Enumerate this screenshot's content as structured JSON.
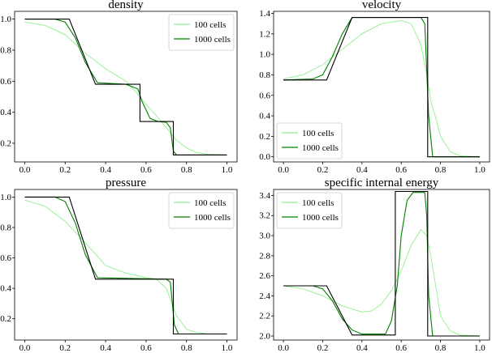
{
  "chart_data": [
    {
      "type": "line",
      "title": "density",
      "xlim": [
        -0.05,
        1.05
      ],
      "ylim": [
        0.08,
        1.05
      ],
      "xticks": [
        "0.0",
        "0.2",
        "0.4",
        "0.6",
        "0.8",
        "1.0"
      ],
      "yticks": [
        "0.2",
        "0.4",
        "0.6",
        "0.8",
        "1.0"
      ],
      "legend_position": "top-right",
      "series": [
        {
          "name": "100 cells",
          "color": "#90ee90",
          "x": [
            0,
            0.1,
            0.2,
            0.3,
            0.4,
            0.5,
            0.55,
            0.6,
            0.65,
            0.7,
            0.75,
            0.8,
            0.85,
            0.9,
            1.0
          ],
          "y": [
            0.98,
            0.96,
            0.9,
            0.78,
            0.68,
            0.6,
            0.53,
            0.45,
            0.38,
            0.3,
            0.22,
            0.17,
            0.14,
            0.13,
            0.125
          ]
        },
        {
          "name": "1000 cells",
          "color": "#008000",
          "x": [
            0,
            0.15,
            0.2,
            0.25,
            0.3,
            0.36,
            0.5,
            0.56,
            0.58,
            0.62,
            0.66,
            0.7,
            0.72,
            0.735,
            0.75,
            1.0
          ],
          "y": [
            1.0,
            1.0,
            0.98,
            0.88,
            0.72,
            0.59,
            0.58,
            0.55,
            0.47,
            0.36,
            0.34,
            0.335,
            0.3,
            0.15,
            0.125,
            0.125
          ]
        },
        {
          "name": "",
          "color": "#000000",
          "x": [
            0,
            0.22,
            0.35,
            0.57,
            0.57,
            0.735,
            0.735,
            1.0
          ],
          "y": [
            1.0,
            1.0,
            0.58,
            0.58,
            0.34,
            0.34,
            0.125,
            0.125
          ]
        }
      ]
    },
    {
      "type": "line",
      "title": "velocity",
      "xlim": [
        -0.05,
        1.05
      ],
      "ylim": [
        -0.05,
        1.42
      ],
      "xticks": [
        "0.0",
        "0.2",
        "0.4",
        "0.6",
        "0.8",
        "1.0"
      ],
      "yticks": [
        "0.0",
        "0.2",
        "0.4",
        "0.6",
        "0.8",
        "1.0",
        "1.2",
        "1.4"
      ],
      "legend_position": "bottom-left",
      "series": [
        {
          "name": "100 cells",
          "color": "#90ee90",
          "x": [
            0,
            0.1,
            0.2,
            0.3,
            0.4,
            0.5,
            0.6,
            0.65,
            0.7,
            0.73,
            0.75,
            0.78,
            0.8,
            0.85,
            0.9,
            1.0
          ],
          "y": [
            0.76,
            0.8,
            0.9,
            1.05,
            1.2,
            1.3,
            1.33,
            1.3,
            1.1,
            0.8,
            0.55,
            0.35,
            0.2,
            0.05,
            0.01,
            0.0
          ]
        },
        {
          "name": "1000 cells",
          "color": "#008000",
          "x": [
            0,
            0.15,
            0.2,
            0.25,
            0.3,
            0.35,
            0.7,
            0.72,
            0.74,
            0.76,
            1.0
          ],
          "y": [
            0.75,
            0.76,
            0.8,
            0.98,
            1.2,
            1.36,
            1.36,
            1.3,
            0.4,
            0.0,
            0.0
          ]
        },
        {
          "name": "",
          "color": "#000000",
          "x": [
            0,
            0.22,
            0.35,
            0.735,
            0.735,
            1.0
          ],
          "y": [
            0.75,
            0.75,
            1.36,
            1.36,
            0.0,
            0.0
          ]
        }
      ]
    },
    {
      "type": "line",
      "title": "pressure",
      "xlim": [
        -0.05,
        1.05
      ],
      "ylim": [
        0.06,
        1.05
      ],
      "xticks": [
        "0.0",
        "0.2",
        "0.4",
        "0.6",
        "0.8",
        "1.0"
      ],
      "yticks": [
        "0.2",
        "0.4",
        "0.6",
        "0.8",
        "1.0"
      ],
      "legend_position": "top-right",
      "series": [
        {
          "name": "100 cells",
          "color": "#90ee90",
          "x": [
            0,
            0.1,
            0.2,
            0.3,
            0.4,
            0.5,
            0.6,
            0.65,
            0.7,
            0.75,
            0.8,
            0.85,
            0.9,
            1.0
          ],
          "y": [
            0.98,
            0.94,
            0.84,
            0.7,
            0.55,
            0.5,
            0.47,
            0.46,
            0.4,
            0.22,
            0.13,
            0.11,
            0.1,
            0.1
          ]
        },
        {
          "name": "1000 cells",
          "color": "#008000",
          "x": [
            0,
            0.15,
            0.2,
            0.25,
            0.3,
            0.36,
            0.7,
            0.72,
            0.74,
            0.76,
            1.0
          ],
          "y": [
            1.0,
            1.0,
            0.97,
            0.83,
            0.62,
            0.47,
            0.46,
            0.44,
            0.16,
            0.1,
            0.1
          ]
        },
        {
          "name": "",
          "color": "#000000",
          "x": [
            0,
            0.22,
            0.35,
            0.735,
            0.735,
            1.0
          ],
          "y": [
            1.0,
            1.0,
            0.46,
            0.46,
            0.1,
            0.1
          ]
        }
      ]
    },
    {
      "type": "line",
      "title": "specific internal energy",
      "xlim": [
        -0.05,
        1.05
      ],
      "ylim": [
        1.96,
        3.46
      ],
      "xticks": [
        "0.0",
        "0.2",
        "0.4",
        "0.6",
        "0.8",
        "1.0"
      ],
      "yticks": [
        "2.0",
        "2.2",
        "2.4",
        "2.6",
        "2.8",
        "3.0",
        "3.2",
        "3.4"
      ],
      "legend_position": "top-left",
      "series": [
        {
          "name": "100 cells",
          "color": "#90ee90",
          "x": [
            0,
            0.1,
            0.2,
            0.3,
            0.4,
            0.45,
            0.5,
            0.55,
            0.6,
            0.65,
            0.7,
            0.73,
            0.75,
            0.78,
            0.8,
            0.85,
            0.9,
            1.0
          ],
          "y": [
            2.5,
            2.47,
            2.4,
            2.3,
            2.24,
            2.25,
            2.32,
            2.45,
            2.65,
            2.9,
            3.06,
            3.0,
            2.8,
            2.45,
            2.2,
            2.05,
            2.01,
            2.0
          ]
        },
        {
          "name": "1000 cells",
          "color": "#008000",
          "x": [
            0,
            0.15,
            0.2,
            0.25,
            0.3,
            0.35,
            0.4,
            0.52,
            0.55,
            0.58,
            0.6,
            0.63,
            0.66,
            0.72,
            0.73,
            0.74,
            0.76,
            1.0
          ],
          "y": [
            2.5,
            2.5,
            2.47,
            2.35,
            2.17,
            2.06,
            2.02,
            2.02,
            2.15,
            2.5,
            3.0,
            3.35,
            3.43,
            3.43,
            3.2,
            2.4,
            2.0,
            2.0
          ]
        },
        {
          "name": "",
          "color": "#000000",
          "x": [
            0,
            0.22,
            0.35,
            0.57,
            0.57,
            0.735,
            0.735,
            1.0
          ],
          "y": [
            2.5,
            2.5,
            2.01,
            2.01,
            3.44,
            3.44,
            2.0,
            2.0
          ]
        }
      ]
    }
  ]
}
